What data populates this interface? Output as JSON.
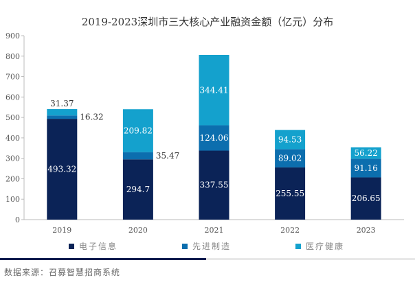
{
  "chart_data": {
    "type": "bar",
    "stacked": true,
    "title": "2019-2023深圳市三大核心产业融资金额（亿元）分布",
    "categories": [
      "2019",
      "2020",
      "2021",
      "2022",
      "2023"
    ],
    "series": [
      {
        "name": "电子信息",
        "color": "#0b2357",
        "values": [
          493.32,
          294.7,
          337.55,
          255.55,
          206.65
        ]
      },
      {
        "name": "先进制造",
        "color": "#0c6eae",
        "values": [
          16.32,
          35.47,
          124.06,
          89.02,
          91.16
        ]
      },
      {
        "name": "医疗健康",
        "color": "#14a1cd",
        "values": [
          31.37,
          209.82,
          344.41,
          94.53,
          56.22
        ]
      }
    ],
    "ylim": [
      0,
      900
    ],
    "yticks": [
      0,
      100,
      200,
      300,
      400,
      500,
      600,
      700,
      800,
      900
    ],
    "grid": false,
    "legend": "bottom"
  },
  "source": "数据来源：召募智慧招商系统"
}
